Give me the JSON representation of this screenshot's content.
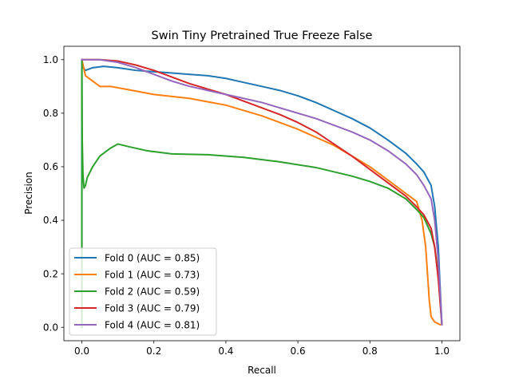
{
  "chart_data": {
    "type": "line",
    "title": "Swin Tiny Pretrained True Freeze False",
    "xlabel": "Recall",
    "ylabel": "Precision",
    "xlim": [
      -0.05,
      1.05
    ],
    "ylim": [
      -0.05,
      1.05
    ],
    "xticks": [
      0.0,
      0.2,
      0.4,
      0.6,
      0.8,
      1.0
    ],
    "yticks": [
      0.0,
      0.2,
      0.4,
      0.6,
      0.8,
      1.0
    ],
    "tick_labels": [
      "0.0",
      "0.2",
      "0.4",
      "0.6",
      "0.8",
      "1.0"
    ],
    "grid": false,
    "legend_position": "lower-left",
    "series": [
      {
        "name": "Fold 0 (AUC = 0.85)",
        "color": "#1f77b4",
        "points": [
          [
            0.0,
            0.0
          ],
          [
            0.0,
            1.0
          ],
          [
            0.003,
            0.97
          ],
          [
            0.01,
            0.96
          ],
          [
            0.03,
            0.97
          ],
          [
            0.06,
            0.975
          ],
          [
            0.1,
            0.97
          ],
          [
            0.15,
            0.96
          ],
          [
            0.2,
            0.955
          ],
          [
            0.25,
            0.95
          ],
          [
            0.3,
            0.945
          ],
          [
            0.35,
            0.94
          ],
          [
            0.4,
            0.93
          ],
          [
            0.45,
            0.915
          ],
          [
            0.5,
            0.9
          ],
          [
            0.55,
            0.885
          ],
          [
            0.6,
            0.865
          ],
          [
            0.65,
            0.84
          ],
          [
            0.7,
            0.81
          ],
          [
            0.75,
            0.78
          ],
          [
            0.8,
            0.745
          ],
          [
            0.85,
            0.7
          ],
          [
            0.9,
            0.65
          ],
          [
            0.93,
            0.61
          ],
          [
            0.95,
            0.58
          ],
          [
            0.97,
            0.53
          ],
          [
            0.98,
            0.45
          ],
          [
            0.99,
            0.3
          ],
          [
            0.995,
            0.15
          ],
          [
            1.0,
            0.01
          ]
        ]
      },
      {
        "name": "Fold 1 (AUC = 0.73)",
        "color": "#ff7f0e",
        "points": [
          [
            0.0,
            1.0
          ],
          [
            0.01,
            0.94
          ],
          [
            0.03,
            0.92
          ],
          [
            0.05,
            0.9
          ],
          [
            0.08,
            0.9
          ],
          [
            0.12,
            0.89
          ],
          [
            0.2,
            0.87
          ],
          [
            0.3,
            0.855
          ],
          [
            0.4,
            0.83
          ],
          [
            0.5,
            0.79
          ],
          [
            0.6,
            0.74
          ],
          [
            0.7,
            0.68
          ],
          [
            0.75,
            0.64
          ],
          [
            0.8,
            0.6
          ],
          [
            0.85,
            0.55
          ],
          [
            0.9,
            0.5
          ],
          [
            0.93,
            0.47
          ],
          [
            0.945,
            0.4
          ],
          [
            0.955,
            0.3
          ],
          [
            0.96,
            0.2
          ],
          [
            0.965,
            0.1
          ],
          [
            0.97,
            0.04
          ],
          [
            0.98,
            0.02
          ],
          [
            0.995,
            0.01
          ]
        ]
      },
      {
        "name": "Fold 2 (AUC = 0.59)",
        "color": "#2ca02c",
        "points": [
          [
            0.0,
            0.0
          ],
          [
            0.0,
            1.0
          ],
          [
            0.001,
            0.7
          ],
          [
            0.003,
            0.57
          ],
          [
            0.006,
            0.52
          ],
          [
            0.01,
            0.53
          ],
          [
            0.015,
            0.56
          ],
          [
            0.03,
            0.6
          ],
          [
            0.05,
            0.64
          ],
          [
            0.08,
            0.67
          ],
          [
            0.1,
            0.685
          ],
          [
            0.13,
            0.675
          ],
          [
            0.18,
            0.66
          ],
          [
            0.25,
            0.648
          ],
          [
            0.35,
            0.645
          ],
          [
            0.45,
            0.635
          ],
          [
            0.55,
            0.618
          ],
          [
            0.65,
            0.597
          ],
          [
            0.75,
            0.565
          ],
          [
            0.8,
            0.545
          ],
          [
            0.85,
            0.52
          ],
          [
            0.9,
            0.48
          ],
          [
            0.93,
            0.44
          ],
          [
            0.95,
            0.41
          ],
          [
            0.97,
            0.35
          ],
          [
            0.98,
            0.3
          ],
          [
            0.99,
            0.2
          ],
          [
            0.995,
            0.1
          ],
          [
            1.0,
            0.01
          ]
        ]
      },
      {
        "name": "Fold 3 (AUC = 0.79)",
        "color": "#d62728",
        "points": [
          [
            0.0,
            1.0
          ],
          [
            0.05,
            1.0
          ],
          [
            0.1,
            0.995
          ],
          [
            0.15,
            0.98
          ],
          [
            0.2,
            0.96
          ],
          [
            0.25,
            0.935
          ],
          [
            0.3,
            0.91
          ],
          [
            0.35,
            0.89
          ],
          [
            0.4,
            0.87
          ],
          [
            0.45,
            0.845
          ],
          [
            0.5,
            0.82
          ],
          [
            0.55,
            0.795
          ],
          [
            0.6,
            0.765
          ],
          [
            0.65,
            0.73
          ],
          [
            0.7,
            0.685
          ],
          [
            0.75,
            0.64
          ],
          [
            0.8,
            0.59
          ],
          [
            0.85,
            0.54
          ],
          [
            0.9,
            0.49
          ],
          [
            0.93,
            0.45
          ],
          [
            0.95,
            0.42
          ],
          [
            0.97,
            0.37
          ],
          [
            0.98,
            0.3
          ],
          [
            0.99,
            0.18
          ],
          [
            1.0,
            0.01
          ]
        ]
      },
      {
        "name": "Fold 4 (AUC = 0.81)",
        "color": "#9467bd",
        "points": [
          [
            0.0,
            1.0
          ],
          [
            0.05,
            1.0
          ],
          [
            0.1,
            0.99
          ],
          [
            0.15,
            0.97
          ],
          [
            0.2,
            0.945
          ],
          [
            0.25,
            0.92
          ],
          [
            0.3,
            0.9
          ],
          [
            0.35,
            0.885
          ],
          [
            0.4,
            0.87
          ],
          [
            0.45,
            0.855
          ],
          [
            0.5,
            0.84
          ],
          [
            0.55,
            0.82
          ],
          [
            0.6,
            0.8
          ],
          [
            0.65,
            0.78
          ],
          [
            0.7,
            0.755
          ],
          [
            0.75,
            0.73
          ],
          [
            0.8,
            0.7
          ],
          [
            0.85,
            0.66
          ],
          [
            0.9,
            0.61
          ],
          [
            0.93,
            0.57
          ],
          [
            0.95,
            0.53
          ],
          [
            0.97,
            0.48
          ],
          [
            0.98,
            0.4
          ],
          [
            0.99,
            0.25
          ],
          [
            1.0,
            0.01
          ]
        ]
      }
    ]
  }
}
